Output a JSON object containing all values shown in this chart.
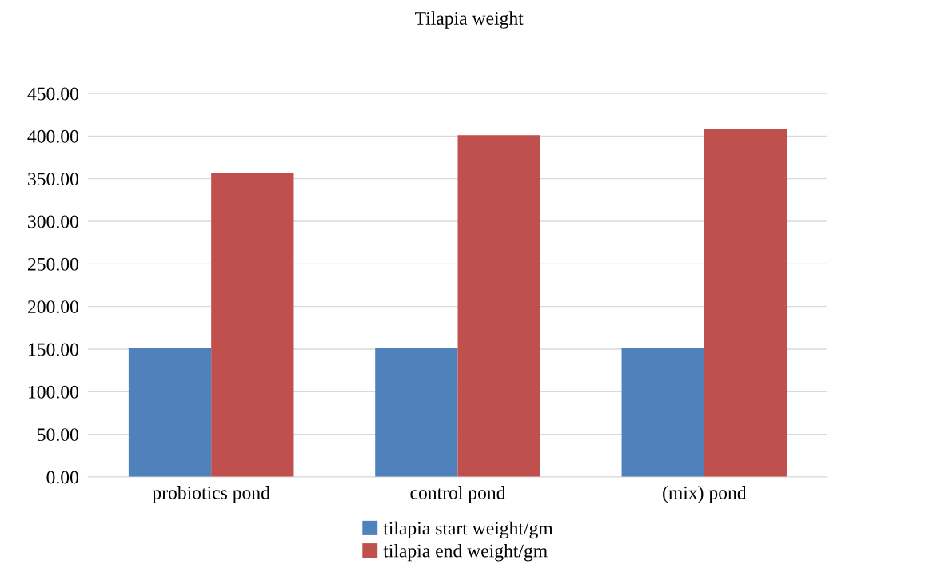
{
  "chart_data": {
    "type": "bar",
    "title": "Tilapia weight",
    "categories": [
      "probiotics pond",
      "control pond",
      "(mix) pond"
    ],
    "series": [
      {
        "name": "tilapia start weight/gm",
        "color": "#4f81bd",
        "values": [
          151,
          151,
          151
        ]
      },
      {
        "name": "tilapia end weight/gm",
        "color": "#c0504d",
        "values": [
          357,
          401,
          408
        ]
      }
    ],
    "ylim": [
      0,
      450
    ],
    "yticks": [
      {
        "value": 0,
        "label": "0.00"
      },
      {
        "value": 50,
        "label": "50.00"
      },
      {
        "value": 100,
        "label": "100.00"
      },
      {
        "value": 150,
        "label": "150.00"
      },
      {
        "value": 200,
        "label": "200.00"
      },
      {
        "value": 250,
        "label": "250.00"
      },
      {
        "value": 300,
        "label": "300.00"
      },
      {
        "value": 350,
        "label": "350.00"
      },
      {
        "value": 400,
        "label": "400.00"
      },
      {
        "value": 450,
        "label": "450.00"
      }
    ],
    "grid": "y",
    "legend": "bottom"
  }
}
